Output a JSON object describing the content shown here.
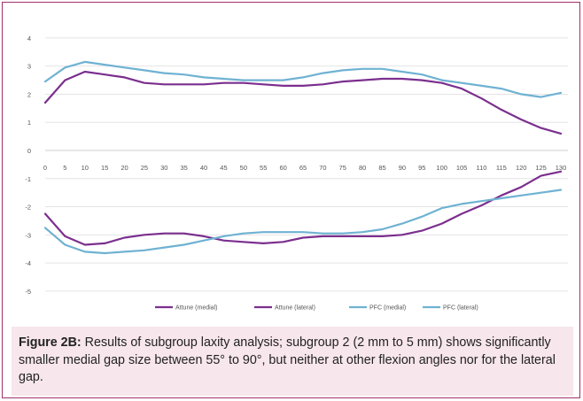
{
  "chart_data": {
    "type": "line",
    "x": [
      0,
      5,
      10,
      15,
      20,
      25,
      30,
      35,
      40,
      45,
      50,
      55,
      60,
      65,
      70,
      75,
      80,
      85,
      90,
      95,
      100,
      105,
      110,
      115,
      120,
      125,
      130
    ],
    "ylim": [
      -5,
      4
    ],
    "yticks": [
      4,
      3,
      2,
      1,
      0,
      -1,
      -2,
      -3,
      -4,
      -5
    ],
    "grid": "horizontal",
    "legend": "bottom",
    "series": [
      {
        "name": "Attune (medial)",
        "color": "#7b2f8e",
        "values": [
          1.7,
          2.5,
          2.8,
          2.7,
          2.6,
          2.4,
          2.35,
          2.35,
          2.35,
          2.4,
          2.4,
          2.35,
          2.3,
          2.3,
          2.35,
          2.45,
          2.5,
          2.55,
          2.55,
          2.5,
          2.4,
          2.2,
          1.85,
          1.45,
          1.1,
          0.8,
          0.6
        ]
      },
      {
        "name": "Attune (lateral)",
        "color": "#7b2f8e",
        "values": [
          -2.25,
          -3.05,
          -3.35,
          -3.3,
          -3.1,
          -3.0,
          -2.95,
          -2.95,
          -3.05,
          -3.2,
          -3.25,
          -3.3,
          -3.25,
          -3.1,
          -3.05,
          -3.05,
          -3.05,
          -3.05,
          -3.0,
          -2.85,
          -2.6,
          -2.25,
          -1.95,
          -1.6,
          -1.3,
          -0.9,
          -0.75
        ]
      },
      {
        "name": "PFC (medial)",
        "color": "#6fb2d2",
        "values": [
          2.45,
          2.95,
          3.15,
          3.05,
          2.95,
          2.85,
          2.75,
          2.7,
          2.6,
          2.55,
          2.5,
          2.5,
          2.5,
          2.6,
          2.75,
          2.85,
          2.9,
          2.9,
          2.8,
          2.7,
          2.5,
          2.4,
          2.3,
          2.2,
          2.0,
          1.9,
          2.05
        ]
      },
      {
        "name": "PFC (lateral)",
        "color": "#6fb2d2",
        "values": [
          -2.75,
          -3.35,
          -3.6,
          -3.65,
          -3.6,
          -3.55,
          -3.45,
          -3.35,
          -3.2,
          -3.05,
          -2.95,
          -2.9,
          -2.9,
          -2.9,
          -2.95,
          -2.95,
          -2.9,
          -2.8,
          -2.6,
          -2.35,
          -2.05,
          -1.9,
          -1.8,
          -1.7,
          -1.6,
          -1.5,
          -1.4
        ]
      }
    ]
  },
  "caption": {
    "label": "Figure 2B:",
    "text": " Results of subgroup laxity analysis; subgroup 2 (2 mm to 5 mm) shows significantly smaller medial gap size between 55° to 90°, but neither at other flexion angles nor for the lateral gap."
  }
}
